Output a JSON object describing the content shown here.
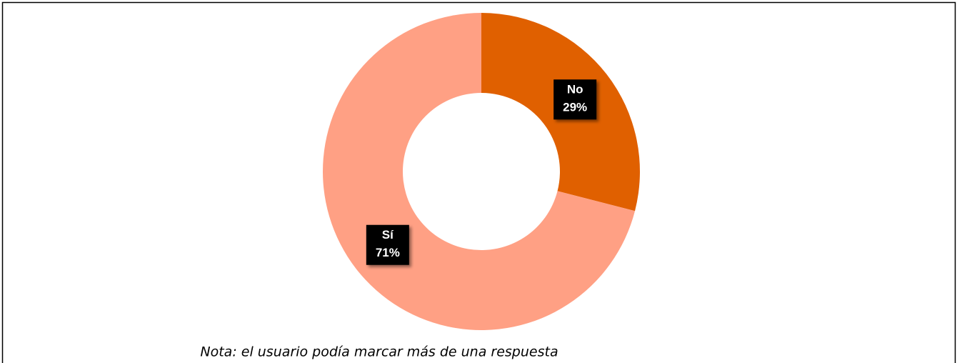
{
  "chart_data": {
    "type": "donut",
    "categories": [
      "No",
      "Sí"
    ],
    "values": [
      29,
      71
    ],
    "value_labels": [
      "29%",
      "71%"
    ],
    "colors": [
      "#e06000",
      "#ffa084"
    ],
    "note": "Nota: el usuario podía marcar más de una respuesta"
  }
}
